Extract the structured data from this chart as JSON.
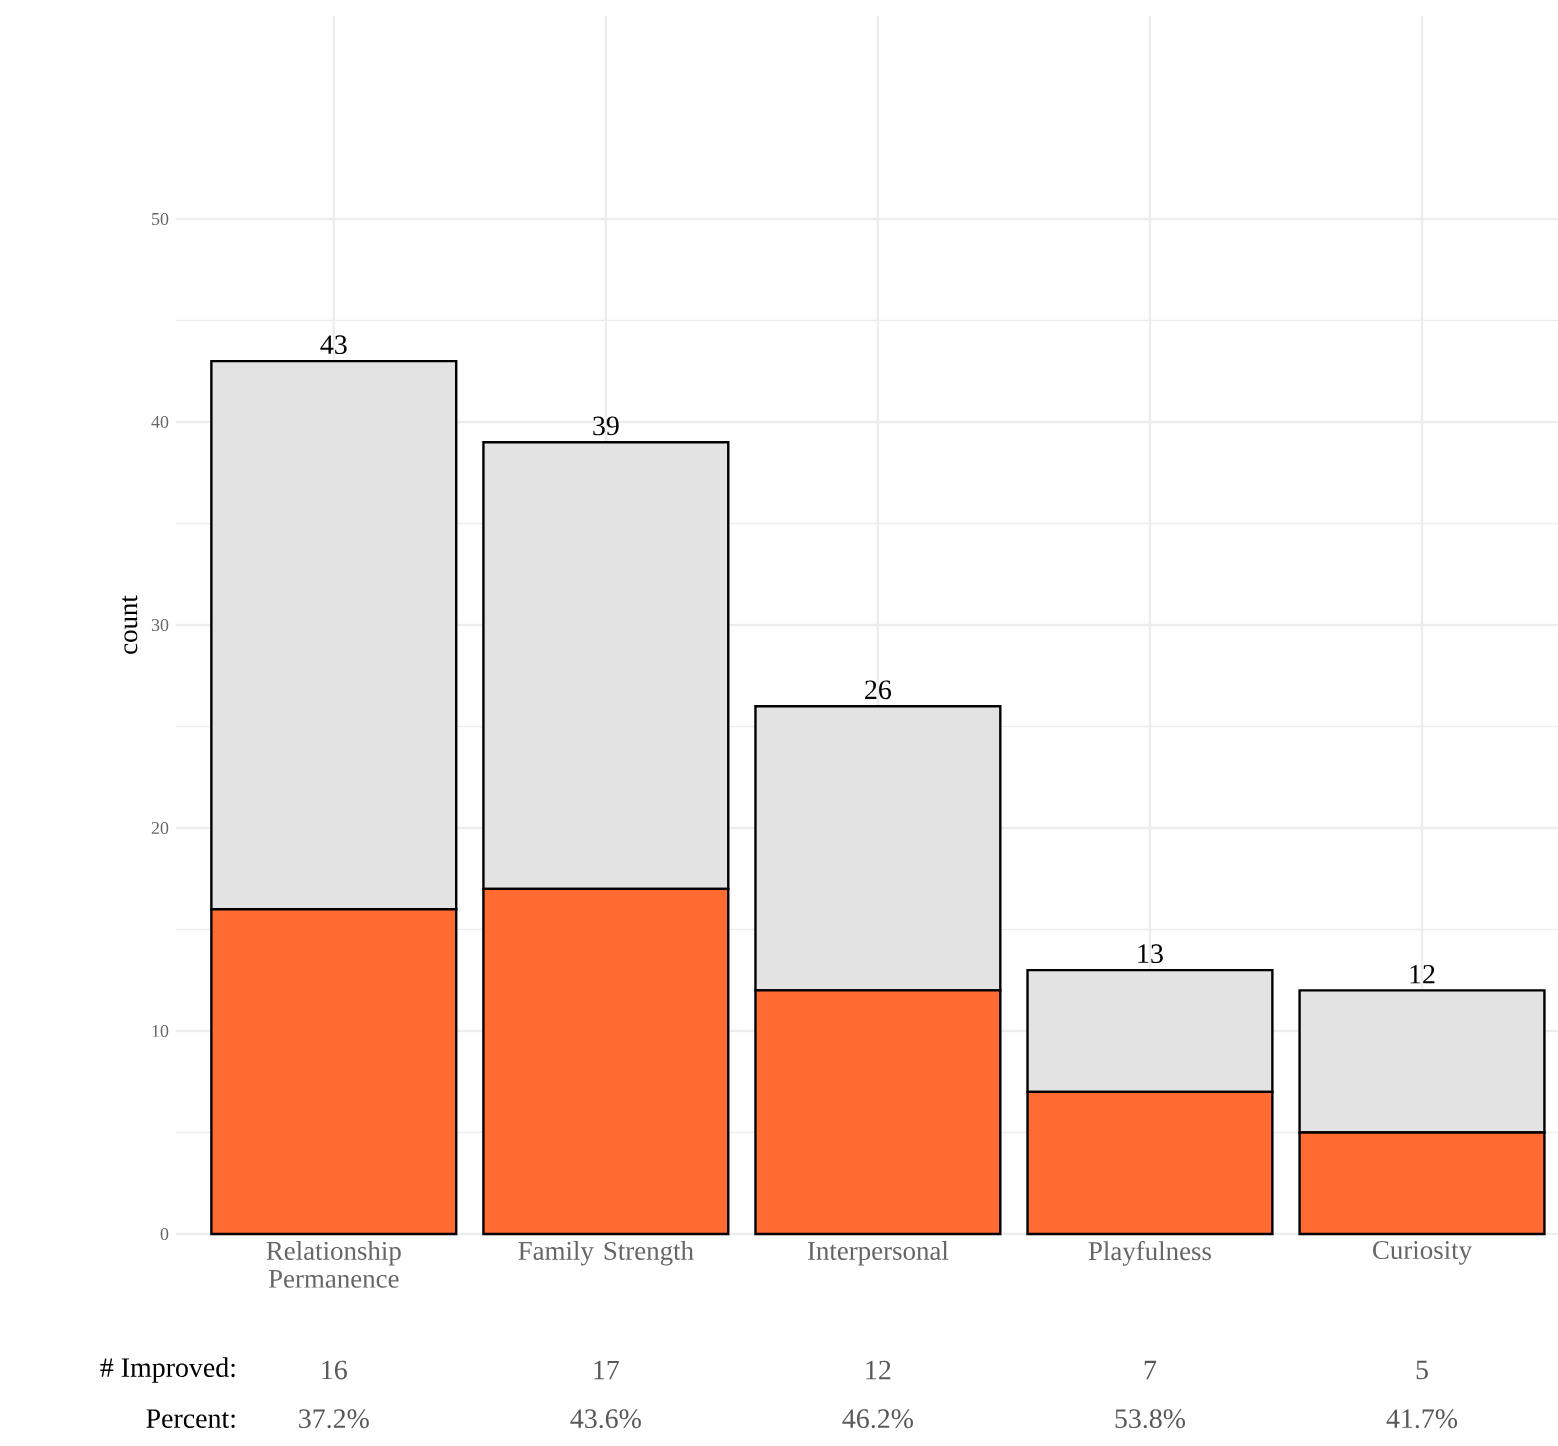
{
  "chart_data": {
    "type": "bar",
    "stacked": true,
    "ylabel": "count",
    "categories": [
      "Relationship Permanence",
      "Family Strength",
      "Interpersonal",
      "Playfulness",
      "Curiosity"
    ],
    "series": [
      {
        "name": "# Improved:",
        "color": "#ff6b30",
        "values": [
          16,
          17,
          12,
          7,
          5
        ],
        "value_labels": [
          "16",
          "17",
          "12",
          "7",
          "5"
        ]
      },
      {
        "color": "#e3e3e3",
        "values": [
          27,
          22,
          14,
          6,
          7
        ]
      }
    ],
    "totals": [
      "43",
      "39",
      "26",
      "13",
      "12"
    ],
    "annotations": [
      "Percent:",
      "37.2%",
      "43.6%",
      "46.2%",
      "53.8%",
      "41.7%"
    ],
    "ylim": [
      0,
      60
    ],
    "yticks": [
      0,
      10,
      20,
      30,
      40,
      50
    ],
    "grid": true
  }
}
